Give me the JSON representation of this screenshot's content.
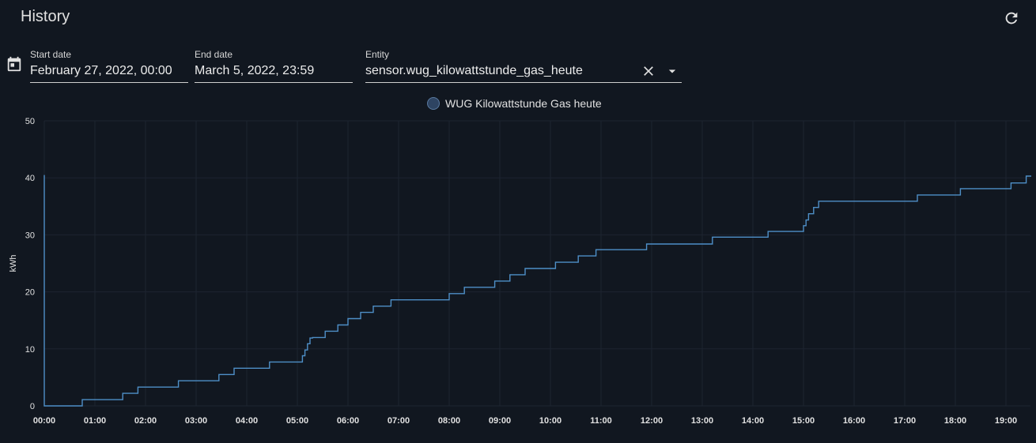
{
  "header": {
    "title": "History",
    "refresh_icon": "refresh-icon"
  },
  "filters": {
    "calendar_icon": "calendar-icon",
    "start_date": {
      "label": "Start date",
      "value": "February 27, 2022, 00:00"
    },
    "end_date": {
      "label": "End date",
      "value": "March 5, 2022, 23:59"
    },
    "entity": {
      "label": "Entity",
      "value": "sensor.wug_kilowattstunde_gas_heute",
      "clear_icon": "close-icon",
      "dropdown_icon": "caret-down-icon"
    }
  },
  "colors": {
    "background": "#111720",
    "line": "#4e8fc7",
    "grid": "#1d2430",
    "legend_dot": "#2e4462"
  },
  "chart_data": {
    "type": "line",
    "step": true,
    "ylabel": "kWh",
    "ylim": [
      0,
      50
    ],
    "yticks": [
      0,
      10,
      20,
      30,
      40,
      50
    ],
    "xlim_hours": [
      0,
      19.5
    ],
    "xticks": [
      "00:00",
      "01:00",
      "02:00",
      "03:00",
      "04:00",
      "05:00",
      "06:00",
      "07:00",
      "08:00",
      "09:00",
      "10:00",
      "11:00",
      "12:00",
      "13:00",
      "14:00",
      "15:00",
      "16:00",
      "17:00",
      "18:00",
      "19:00"
    ],
    "grid": true,
    "legend": "top-center",
    "series": [
      {
        "name": "WUG Kilowattstunde Gas heute",
        "x": [
          0.0,
          0.0,
          0.75,
          1.55,
          1.85,
          2.65,
          3.45,
          3.75,
          4.45,
          5.1,
          5.15,
          5.2,
          5.25,
          5.3,
          5.55,
          5.8,
          6.0,
          6.25,
          6.5,
          6.85,
          7.3,
          8.0,
          8.3,
          8.9,
          9.2,
          9.5,
          10.1,
          10.55,
          10.9,
          11.9,
          13.2,
          14.3,
          15.0,
          15.05,
          15.1,
          15.2,
          15.3,
          16.05,
          17.25,
          18.1,
          19.1,
          19.4,
          19.5
        ],
        "values": [
          40.5,
          0,
          1.1,
          2.2,
          3.3,
          4.4,
          5.5,
          6.6,
          7.7,
          8.8,
          9.8,
          10.9,
          11.9,
          12.0,
          13.1,
          14.2,
          15.3,
          16.4,
          17.5,
          18.6,
          18.6,
          19.7,
          20.8,
          21.9,
          23.0,
          24.1,
          25.2,
          26.3,
          27.4,
          28.4,
          29.6,
          30.6,
          31.6,
          32.6,
          33.7,
          34.8,
          35.9,
          35.9,
          37.0,
          38.1,
          39.1,
          40.3,
          40.3
        ]
      }
    ]
  }
}
